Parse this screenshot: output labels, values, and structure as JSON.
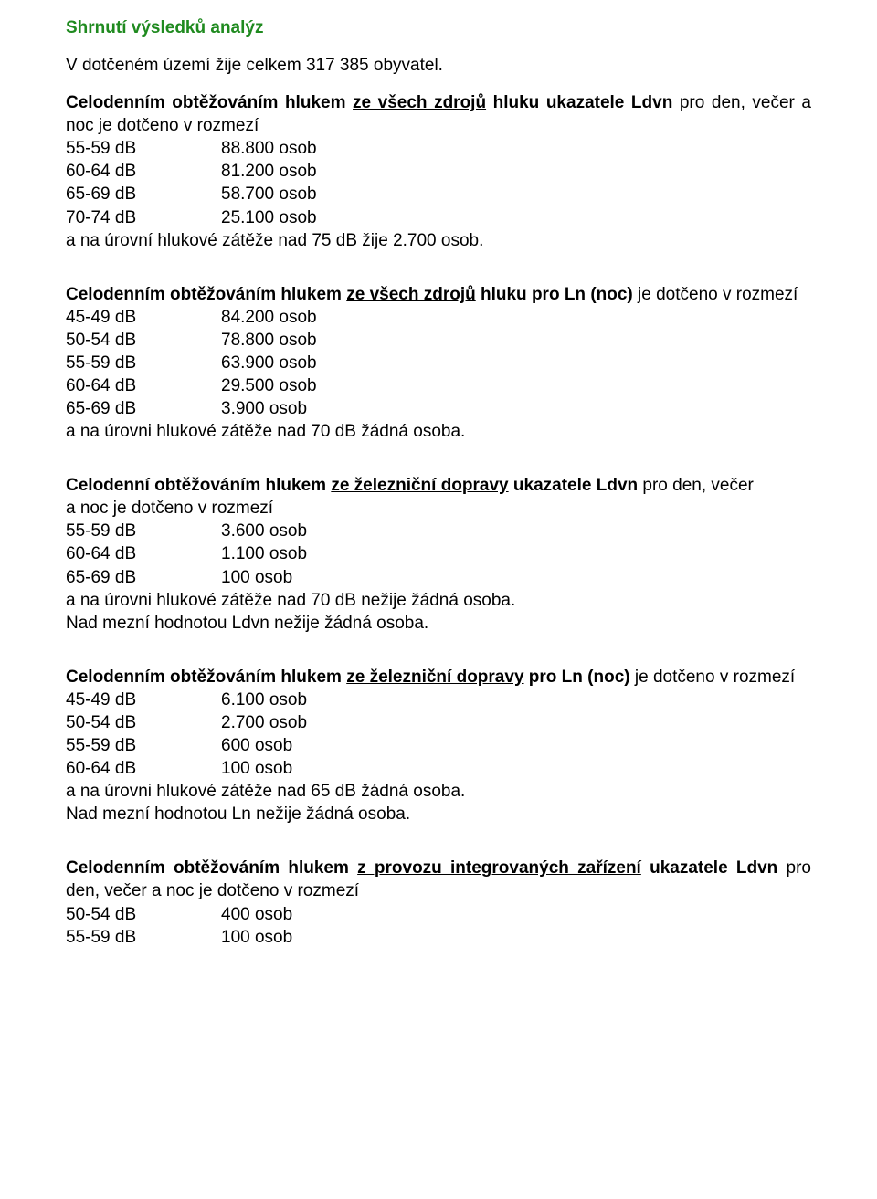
{
  "title": "Shrnutí výsledků analýz",
  "intro": "V dotčeném území žije celkem 317 385 obyvatel.",
  "sections": [
    {
      "lead_pre": "Celodenním obtěžováním hlukem ",
      "lead_u": "ze všech zdrojů",
      "lead_post": " hluku ukazatele Ldvn",
      "lead_tail": " pro den, večer a noc je dotčeno v rozmezí",
      "rows": [
        {
          "db": "55-59 dB",
          "val": "88.800 osob"
        },
        {
          "db": "60-64 dB",
          "val": "81.200 osob"
        },
        {
          "db": "65-69 dB",
          "val": "58.700 osob"
        },
        {
          "db": "70-74 dB",
          "val": "25.100 osob"
        }
      ],
      "note": "a na úrovní hlukové zátěže nad 75 dB žije 2.700 osob.",
      "note2": ""
    },
    {
      "lead_pre": "Celodenním obtěžováním hlukem ",
      "lead_u": "ze všech zdrojů",
      "lead_post": " hluku pro Ln (noc)",
      "lead_tail": " je dotčeno v rozmezí",
      "rows": [
        {
          "db": "45-49 dB",
          "val": "84.200 osob"
        },
        {
          "db": "50-54 dB",
          "val": "78.800 osob"
        },
        {
          "db": "55-59 dB",
          "val": "63.900 osob"
        },
        {
          "db": "60-64 dB",
          "val": "29.500 osob"
        },
        {
          "db": "65-69 dB",
          "val": "  3.900 osob"
        }
      ],
      "note": "a na úrovni hlukové zátěže nad 70 dB žádná osoba.",
      "note2": ""
    },
    {
      "lead_pre": "Celodenní obtěžováním hlukem ",
      "lead_u": "ze železniční dopravy",
      "lead_post": " ukazatele Ldvn",
      "lead_tail": " pro den, večer",
      "lead_line2": "a noc je dotčeno v rozmezí",
      "rows": [
        {
          "db": "55-59 dB",
          "val": "  3.600 osob"
        },
        {
          "db": "60-64 dB",
          "val": "  1.100 osob"
        },
        {
          "db": "65-69 dB",
          "val": "    100 osob"
        }
      ],
      "note": "a na úrovni hlukové zátěže nad 70 dB nežije žádná osoba.",
      "note2": "Nad mezní hodnotou Ldvn nežije žádná osoba."
    },
    {
      "lead_pre": "Celodenním obtěžováním hlukem ",
      "lead_u": "ze železniční dopravy",
      "lead_post": " pro Ln (noc)",
      "lead_tail": " je dotčeno v rozmezí",
      "rows": [
        {
          "db": "45-49 dB",
          "val": "  6.100 osob"
        },
        {
          "db": "50-54 dB",
          "val": "  2.700 osob"
        },
        {
          "db": "55-59 dB",
          "val": "    600 osob"
        },
        {
          "db": "60-64 dB",
          "val": "    100 osob"
        }
      ],
      "note": "a na úrovni hlukové zátěže nad 65 dB žádná osoba.",
      "note2": "Nad mezní hodnotou Ln nežije žádná osoba."
    },
    {
      "lead_pre": "Celodenním obtěžováním hlukem ",
      "lead_u": "z provozu integrovaných zařízení",
      "lead_post": " ukazatele Ldvn",
      "lead_tail": " pro den, večer a noc je dotčeno v rozmezí",
      "rows": [
        {
          "db": "50-54 dB",
          "val": "    400 osob"
        },
        {
          "db": "55-59 dB",
          "val": "    100 osob"
        }
      ],
      "note": "",
      "note2": ""
    }
  ]
}
